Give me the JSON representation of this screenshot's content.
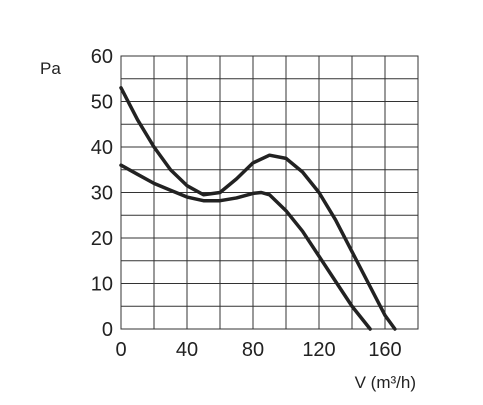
{
  "chart_data": {
    "type": "line",
    "x_label": "V (m³/h)",
    "y_label": "Pa",
    "xlim": [
      0,
      180
    ],
    "ylim": [
      0,
      60
    ],
    "xticks": [
      0,
      40,
      80,
      120,
      160
    ],
    "yticks": [
      0,
      10,
      20,
      30,
      40,
      50,
      60
    ],
    "x_minor_grid": [
      20,
      60,
      100,
      140,
      180
    ],
    "y_minor_grid": [
      5,
      15,
      25,
      35,
      45,
      55
    ],
    "grid": true,
    "series": [
      {
        "color": "#222222",
        "x": [
          0,
          10,
          20,
          30,
          40,
          50,
          60,
          70,
          80,
          90,
          100,
          110,
          120,
          130,
          140,
          150,
          160,
          166
        ],
        "values": [
          53,
          46,
          40,
          35,
          31.5,
          29.5,
          30,
          33,
          36.5,
          38.2,
          37.5,
          34.5,
          30,
          24,
          17,
          10,
          3,
          0
        ]
      },
      {
        "color": "#222222",
        "x": [
          0,
          10,
          20,
          30,
          40,
          50,
          60,
          70,
          80,
          85,
          90,
          100,
          110,
          120,
          130,
          140,
          151
        ],
        "values": [
          36,
          34,
          32,
          30.5,
          29,
          28.2,
          28.2,
          28.8,
          29.8,
          30,
          29.5,
          26,
          21.5,
          16,
          10.5,
          5,
          0
        ]
      }
    ]
  }
}
